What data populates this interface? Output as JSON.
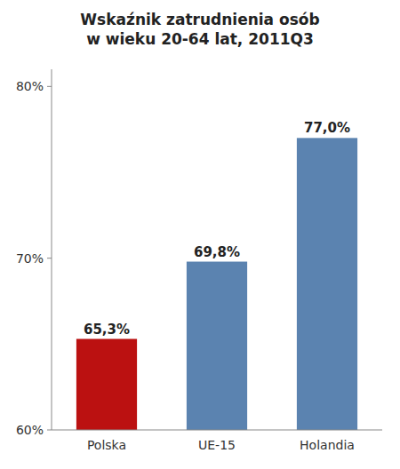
{
  "chart_data": {
    "type": "bar",
    "title": "Wskaźnik zatrudnienia osób",
    "subtitle": "w wieku 20-64 lat, 2011Q3",
    "categories": [
      "Polska",
      "UE-15",
      "Holandia"
    ],
    "values": [
      65.3,
      69.8,
      77.0
    ],
    "value_labels": [
      "65,3%",
      "69,8%",
      "77,0%"
    ],
    "data_labels": true,
    "colors": [
      "#bb1111",
      "#5b83b0",
      "#5b83b0"
    ],
    "ylim": [
      60,
      81
    ],
    "yticks": [
      {
        "value": 60,
        "label": "60%"
      },
      {
        "value": 70,
        "label": "70%"
      },
      {
        "value": 80,
        "label": "80%"
      }
    ],
    "grid": false
  }
}
